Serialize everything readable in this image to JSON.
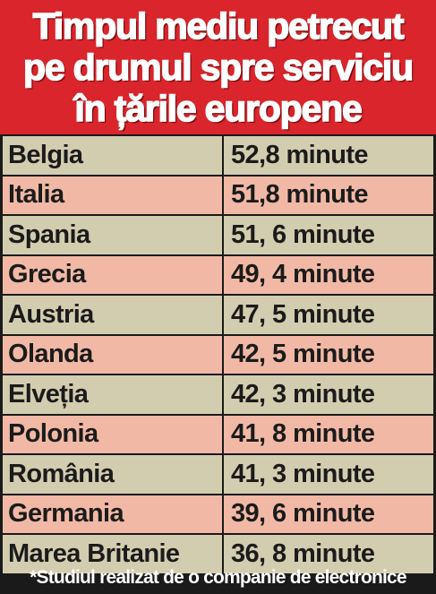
{
  "title": {
    "lines": [
      "Timpul mediu petrecut",
      "pe drumul spre serviciu",
      "în țările europene"
    ]
  },
  "colors": {
    "title_background": "#d9252b",
    "row_beige": "#d3cdb0",
    "row_salmon": "#f1b9a5",
    "border": "#1a1a1a",
    "footnote_text": "#ffffff"
  },
  "rows": [
    {
      "country": "Belgia",
      "value": "52,8 minute"
    },
    {
      "country": "Italia",
      "value": "51,8 minute"
    },
    {
      "country": "Spania",
      "value": "51, 6 minute"
    },
    {
      "country": "Grecia",
      "value": "49, 4 minute"
    },
    {
      "country": "Austria",
      "value": "47, 5 minute"
    },
    {
      "country": "Olanda",
      "value": "42, 5 minute"
    },
    {
      "country": "Elveția",
      "value": "42, 3 minute"
    },
    {
      "country": "Polonia",
      "value": "41, 8 minute"
    },
    {
      "country": "România",
      "value": "41, 3 minute"
    },
    {
      "country": "Germania",
      "value": "39, 6 minute"
    },
    {
      "country": "Marea Britanie",
      "value": "36, 8 minute"
    }
  ],
  "footnote": "*Studiul realizat de o companie de electronice"
}
